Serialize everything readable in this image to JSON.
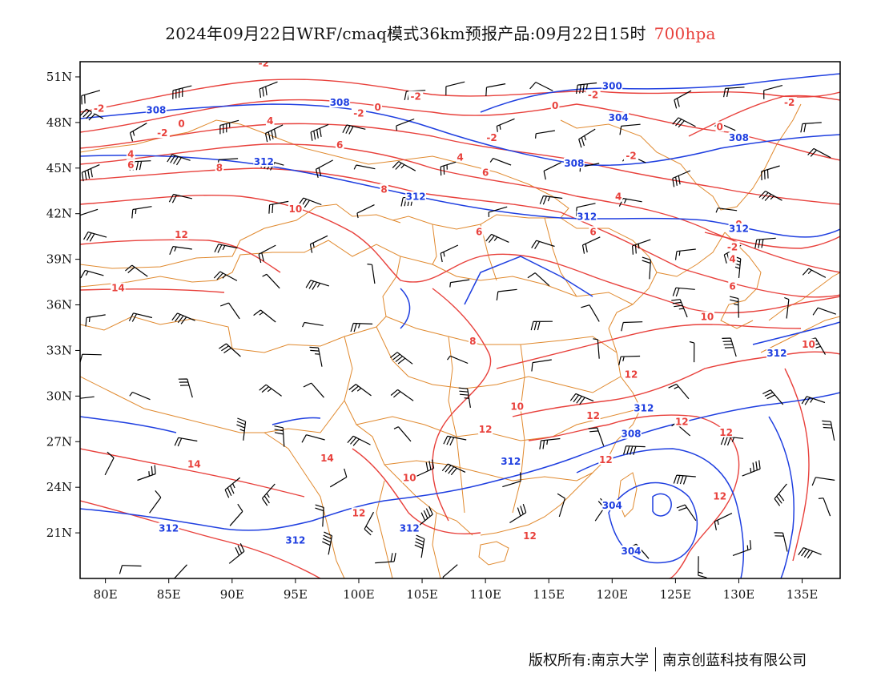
{
  "title": {
    "main": "2024年09月22日WRF/cmaq模式36km预报产品:09月22日15时",
    "level": "700hpa"
  },
  "axes": {
    "lat_labels": [
      "51N",
      "48N",
      "45N",
      "42N",
      "39N",
      "36N",
      "33N",
      "30N",
      "27N",
      "24N",
      "21N"
    ],
    "lon_labels": [
      "80E",
      "85E",
      "90E",
      "95E",
      "100E",
      "105E",
      "110E",
      "115E",
      "120E",
      "125E",
      "130E",
      "135E"
    ]
  },
  "map": {
    "extent": {
      "lon_min": 78,
      "lon_max": 138,
      "lat_min": 18,
      "lat_max": 52
    },
    "colors": {
      "temperature": "#e8413c",
      "height": "#1f3fe0",
      "border": "#e0892e",
      "wind": "#000000",
      "title_level": "#e8413c"
    }
  },
  "contours": {
    "temperature_labels": [
      {
        "text": "-2",
        "lon": 79.5,
        "lat": 48.8
      },
      {
        "text": "-2",
        "lon": 92.5,
        "lat": 51.8
      },
      {
        "text": "-2",
        "lon": 100,
        "lat": 48.5
      },
      {
        "text": "-2",
        "lon": 104.5,
        "lat": 49.6
      },
      {
        "text": "-2",
        "lon": 84.5,
        "lat": 47.2
      },
      {
        "text": "-2",
        "lon": 110.5,
        "lat": 46.9
      },
      {
        "text": "-2",
        "lon": 118.5,
        "lat": 49.7
      },
      {
        "text": "-2",
        "lon": 121.5,
        "lat": 45.7
      },
      {
        "text": "-2",
        "lon": 134,
        "lat": 49.2
      },
      {
        "text": "-2",
        "lon": 129.5,
        "lat": 39.7
      },
      {
        "text": "0",
        "lon": 86,
        "lat": 47.8
      },
      {
        "text": "0",
        "lon": 101.5,
        "lat": 48.9
      },
      {
        "text": "0",
        "lon": 115.5,
        "lat": 49.0
      },
      {
        "text": "0",
        "lon": 128.5,
        "lat": 47.6
      },
      {
        "text": "0",
        "lon": 130,
        "lat": 41.2
      },
      {
        "text": "4",
        "lon": 82,
        "lat": 45.8
      },
      {
        "text": "4",
        "lon": 93,
        "lat": 48.0
      },
      {
        "text": "4",
        "lon": 108,
        "lat": 45.6
      },
      {
        "text": "4",
        "lon": 120.5,
        "lat": 43.0
      },
      {
        "text": "4",
        "lon": 129.5,
        "lat": 38.9
      },
      {
        "text": "6",
        "lon": 82,
        "lat": 45.1
      },
      {
        "text": "6",
        "lon": 98.5,
        "lat": 46.4
      },
      {
        "text": "6",
        "lon": 110,
        "lat": 44.6
      },
      {
        "text": "6",
        "lon": 109.5,
        "lat": 40.7
      },
      {
        "text": "6",
        "lon": 118.5,
        "lat": 40.7
      },
      {
        "text": "6",
        "lon": 129.5,
        "lat": 37.1
      },
      {
        "text": "8",
        "lon": 89,
        "lat": 44.9
      },
      {
        "text": "8",
        "lon": 102,
        "lat": 43.5
      },
      {
        "text": "8",
        "lon": 109,
        "lat": 33.5
      },
      {
        "text": "10",
        "lon": 95,
        "lat": 42.2
      },
      {
        "text": "10",
        "lon": 127.5,
        "lat": 35.1
      },
      {
        "text": "10",
        "lon": 112.5,
        "lat": 29.2
      },
      {
        "text": "10",
        "lon": 135.5,
        "lat": 33.3
      },
      {
        "text": "10",
        "lon": 104,
        "lat": 24.5
      },
      {
        "text": "12",
        "lon": 86,
        "lat": 40.5
      },
      {
        "text": "12",
        "lon": 121.5,
        "lat": 31.3
      },
      {
        "text": "12",
        "lon": 118.5,
        "lat": 28.6
      },
      {
        "text": "12",
        "lon": 110,
        "lat": 27.7
      },
      {
        "text": "12",
        "lon": 125.5,
        "lat": 28.2
      },
      {
        "text": "12",
        "lon": 129,
        "lat": 27.5
      },
      {
        "text": "12",
        "lon": 119.5,
        "lat": 25.7
      },
      {
        "text": "12",
        "lon": 100,
        "lat": 22.2
      },
      {
        "text": "12",
        "lon": 113.5,
        "lat": 20.7
      },
      {
        "text": "12",
        "lon": 128.5,
        "lat": 23.3
      },
      {
        "text": "14",
        "lon": 81,
        "lat": 37.0
      },
      {
        "text": "14",
        "lon": 87,
        "lat": 25.4
      },
      {
        "text": "14",
        "lon": 97.5,
        "lat": 25.8
      }
    ],
    "height_labels": [
      {
        "text": "308",
        "lon": 84,
        "lat": 48.7
      },
      {
        "text": "308",
        "lon": 98.5,
        "lat": 49.2
      },
      {
        "text": "308",
        "lon": 117,
        "lat": 45.2
      },
      {
        "text": "308",
        "lon": 130,
        "lat": 46.9
      },
      {
        "text": "308",
        "lon": 121.5,
        "lat": 27.4
      },
      {
        "text": "300",
        "lon": 120,
        "lat": 50.3
      },
      {
        "text": "304",
        "lon": 120.5,
        "lat": 48.2
      },
      {
        "text": "304",
        "lon": 120,
        "lat": 22.7
      },
      {
        "text": "304",
        "lon": 121.5,
        "lat": 19.7
      },
      {
        "text": "312",
        "lon": 92.5,
        "lat": 45.3
      },
      {
        "text": "312",
        "lon": 104.5,
        "lat": 43.0
      },
      {
        "text": "312",
        "lon": 118,
        "lat": 41.7
      },
      {
        "text": "312",
        "lon": 130,
        "lat": 40.9
      },
      {
        "text": "312",
        "lon": 133,
        "lat": 32.7
      },
      {
        "text": "312",
        "lon": 122.5,
        "lat": 29.1
      },
      {
        "text": "312",
        "lon": 112,
        "lat": 25.6
      },
      {
        "text": "312",
        "lon": 95,
        "lat": 20.4
      },
      {
        "text": "312",
        "lon": 104,
        "lat": 21.2
      },
      {
        "text": "312",
        "lon": 85,
        "lat": 21.2
      }
    ]
  },
  "footer": {
    "left": "版权所有:南京大学",
    "right": "南京创蓝科技有限公司"
  }
}
